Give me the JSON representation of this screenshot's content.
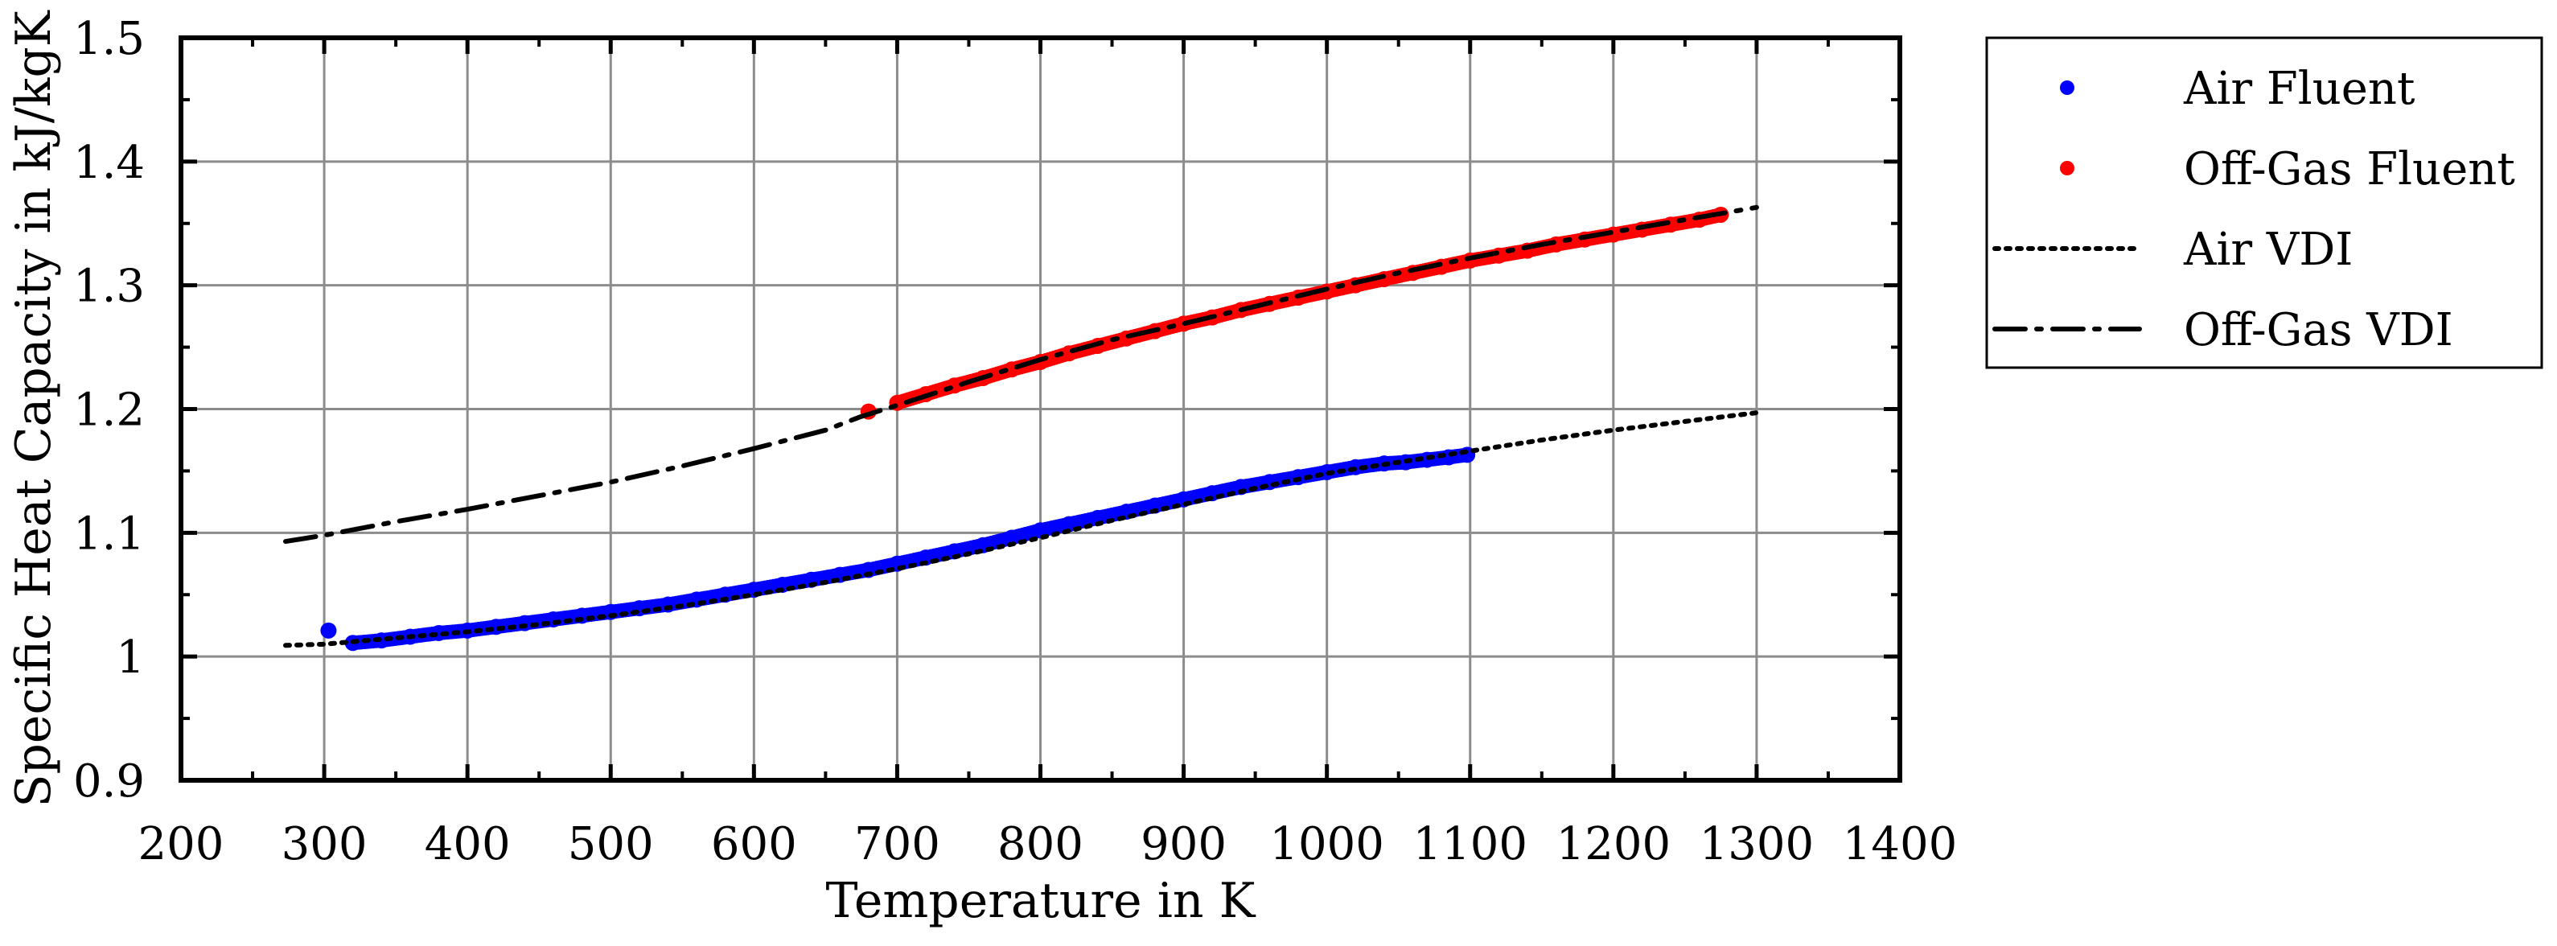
{
  "chart_data": {
    "type": "scatter",
    "title": "",
    "xlabel": "Temperature in K",
    "ylabel": "Specific Heat Capacity in kJ/kgK",
    "xlim": [
      200,
      1400
    ],
    "ylim": [
      0.9,
      1.5
    ],
    "xticks": [
      200,
      300,
      400,
      500,
      600,
      700,
      800,
      900,
      1000,
      1100,
      1200,
      1300,
      1400
    ],
    "yticks": [
      0.9,
      1.0,
      1.1,
      1.2,
      1.3,
      1.4,
      1.5
    ],
    "xtick_labels": [
      "200",
      "300",
      "400",
      "500",
      "600",
      "700",
      "800",
      "900",
      "1000",
      "1100",
      "1200",
      "1300",
      "1400"
    ],
    "ytick_labels": [
      "0.9",
      "1",
      "1.1",
      "1.2",
      "1.3",
      "1.4",
      "1.5"
    ],
    "grid": true,
    "legend_position": "outside-right",
    "series": [
      {
        "name": "Air Fluent",
        "kind": "scatter",
        "color": "#0000ff",
        "x": [
          303,
          320,
          340,
          360,
          380,
          400,
          420,
          440,
          460,
          480,
          500,
          520,
          540,
          560,
          580,
          600,
          620,
          640,
          660,
          680,
          700,
          720,
          740,
          760,
          780,
          800,
          820,
          840,
          860,
          880,
          900,
          920,
          940,
          960,
          980,
          1000,
          1020,
          1040,
          1055,
          1070,
          1085,
          1098
        ],
        "y": [
          1.021,
          1.011,
          1.013,
          1.016,
          1.019,
          1.021,
          1.024,
          1.027,
          1.03,
          1.033,
          1.036,
          1.039,
          1.042,
          1.046,
          1.05,
          1.054,
          1.058,
          1.062,
          1.066,
          1.07,
          1.075,
          1.08,
          1.085,
          1.09,
          1.096,
          1.102,
          1.107,
          1.112,
          1.117,
          1.122,
          1.127,
          1.132,
          1.137,
          1.141,
          1.145,
          1.149,
          1.153,
          1.156,
          1.157,
          1.159,
          1.161,
          1.163
        ]
      },
      {
        "name": "Off-Gas Fluent",
        "kind": "scatter",
        "color": "#ff0000",
        "x": [
          680,
          700,
          720,
          740,
          760,
          780,
          800,
          820,
          840,
          860,
          880,
          900,
          920,
          940,
          960,
          980,
          1000,
          1020,
          1040,
          1060,
          1080,
          1100,
          1120,
          1140,
          1160,
          1180,
          1200,
          1220,
          1240,
          1260,
          1275
        ],
        "y": [
          1.198,
          1.205,
          1.212,
          1.219,
          1.225,
          1.232,
          1.238,
          1.245,
          1.251,
          1.257,
          1.263,
          1.269,
          1.274,
          1.28,
          1.285,
          1.29,
          1.295,
          1.3,
          1.305,
          1.31,
          1.315,
          1.32,
          1.324,
          1.328,
          1.333,
          1.337,
          1.341,
          1.345,
          1.349,
          1.353,
          1.357
        ]
      },
      {
        "name": "Air VDI",
        "kind": "line",
        "dash": "dotted",
        "color": "#000000",
        "x": [
          273,
          300,
          350,
          400,
          450,
          500,
          550,
          600,
          650,
          700,
          750,
          800,
          850,
          900,
          950,
          1000,
          1050,
          1100,
          1150,
          1200,
          1250,
          1300
        ],
        "y": [
          1.009,
          1.01,
          1.015,
          1.02,
          1.026,
          1.033,
          1.041,
          1.05,
          1.06,
          1.071,
          1.083,
          1.096,
          1.11,
          1.123,
          1.136,
          1.148,
          1.157,
          1.166,
          1.175,
          1.183,
          1.19,
          1.197
        ]
      },
      {
        "name": "Off-Gas VDI",
        "kind": "line",
        "dash": "dash-dot",
        "color": "#000000",
        "x": [
          273,
          300,
          350,
          400,
          450,
          500,
          550,
          600,
          650,
          675,
          700,
          750,
          800,
          850,
          900,
          950,
          1000,
          1050,
          1100,
          1150,
          1200,
          1250,
          1300
        ],
        "y": [
          1.093,
          1.098,
          1.109,
          1.119,
          1.13,
          1.141,
          1.154,
          1.168,
          1.183,
          1.194,
          1.203,
          1.222,
          1.24,
          1.256,
          1.269,
          1.283,
          1.297,
          1.31,
          1.322,
          1.333,
          1.343,
          1.353,
          1.363
        ]
      }
    ]
  }
}
